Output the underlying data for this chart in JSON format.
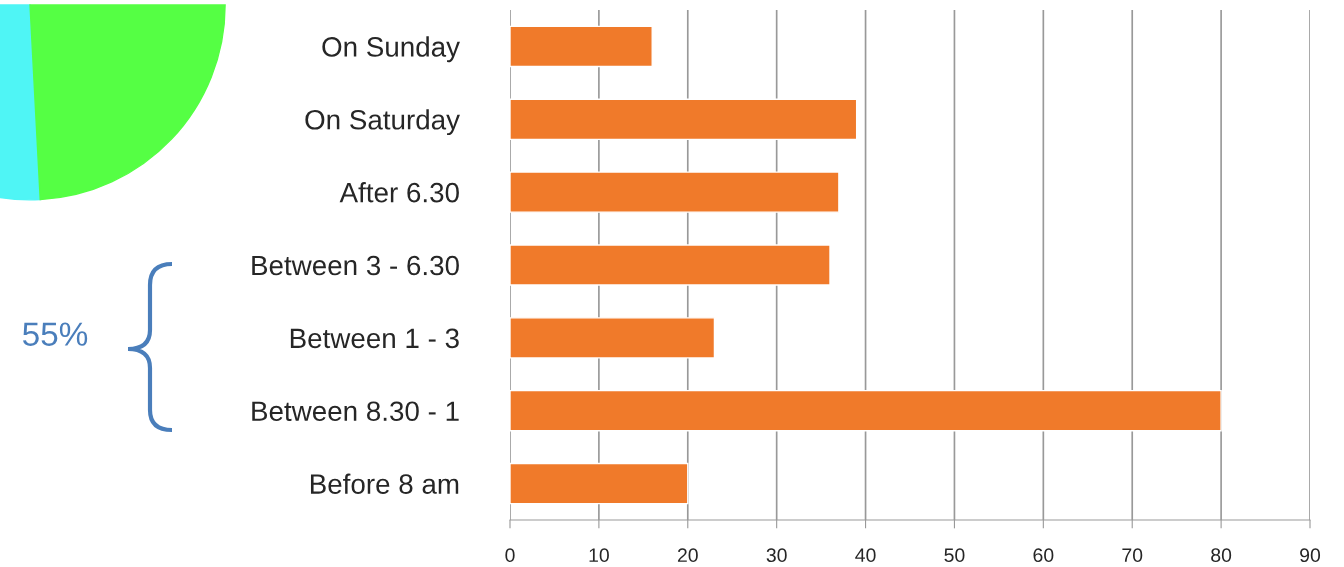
{
  "chart_data": {
    "type": "bar",
    "orientation": "horizontal",
    "categories": [
      "On Sunday",
      "On Saturday",
      "After 6.30",
      "Between 3 - 6.30",
      "Between 1 - 3",
      "Between 8.30 - 1",
      "Before 8 am"
    ],
    "values": [
      16,
      39,
      37,
      36,
      23,
      80,
      20
    ],
    "color": "#f07a2a",
    "xlim": [
      0,
      90
    ],
    "xticks": [
      0,
      10,
      20,
      30,
      40,
      50,
      60,
      70,
      80,
      90
    ],
    "grid": "x",
    "annotations": [
      "55%"
    ]
  }
}
